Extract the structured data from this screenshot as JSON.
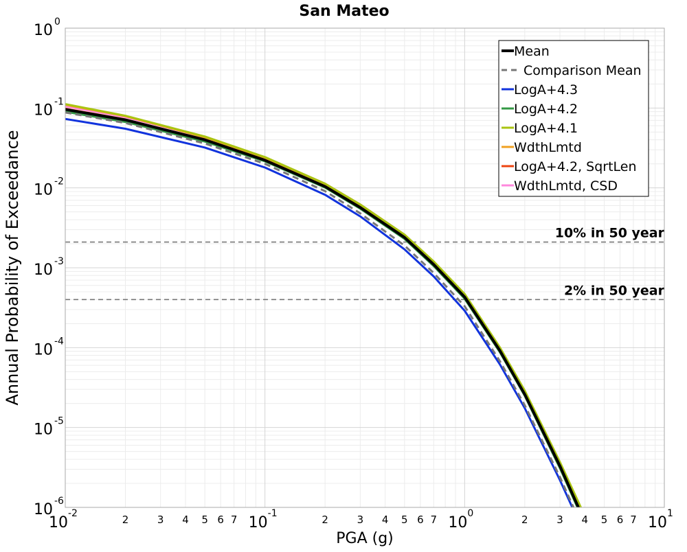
{
  "chart_data": {
    "type": "line",
    "title": "San Mateo",
    "xlabel": "PGA (g)",
    "ylabel": "Annual Probability of Exceedance",
    "xscale": "log",
    "yscale": "log",
    "xlim": [
      0.01,
      10
    ],
    "ylim": [
      1e-06,
      1
    ],
    "x_major_ticks": [
      {
        "value": 0.01,
        "base": "10",
        "exp": "-2"
      },
      {
        "value": 0.1,
        "base": "10",
        "exp": "-1"
      },
      {
        "value": 1,
        "base": "10",
        "exp": "0"
      },
      {
        "value": 10,
        "base": "10",
        "exp": "1"
      }
    ],
    "x_minor_tick_labels": [
      "2",
      "3",
      "4",
      "5",
      "6",
      "7"
    ],
    "y_major_ticks": [
      {
        "value": 1,
        "base": "10",
        "exp": "0"
      },
      {
        "value": 0.1,
        "base": "10",
        "exp": "-1"
      },
      {
        "value": 0.01,
        "base": "10",
        "exp": "-2"
      },
      {
        "value": 0.001,
        "base": "10",
        "exp": "-3"
      },
      {
        "value": 0.0001,
        "base": "10",
        "exp": "-4"
      },
      {
        "value": 1e-05,
        "base": "10",
        "exp": "-5"
      },
      {
        "value": 1e-06,
        "base": "10",
        "exp": "-6"
      }
    ],
    "grid": true,
    "legend_position": "top-right",
    "x": [
      0.01,
      0.02,
      0.05,
      0.1,
      0.2,
      0.3,
      0.5,
      0.7,
      1.0,
      1.5,
      2.0,
      3.0,
      4.0
    ],
    "series": [
      {
        "name": "WdthLmtd, CSD",
        "color": "#ff88dd",
        "dash": "solid",
        "values": [
          0.105,
          0.077,
          0.043,
          0.024,
          0.0113,
          0.0062,
          0.0026,
          0.00118,
          0.00046,
          9.8e-05,
          2.8e-05,
          3.5e-06,
          7.2e-07
        ]
      },
      {
        "name": "LogA+4.2, SqrtLen",
        "color": "#ee4411",
        "dash": "solid",
        "values": [
          0.098,
          0.072,
          0.04,
          0.0225,
          0.0105,
          0.0057,
          0.0024,
          0.0011,
          0.00043,
          9.2e-05,
          2.6e-05,
          3.2e-06,
          6.4e-07
        ]
      },
      {
        "name": "WdthLmtd",
        "color": "#f0a020",
        "dash": "solid",
        "values": [
          0.11,
          0.079,
          0.043,
          0.0238,
          0.011,
          0.006,
          0.0025,
          0.00115,
          0.00045,
          9.8e-05,
          2.8e-05,
          3.5e-06,
          7.2e-07
        ]
      },
      {
        "name": "LogA+4.2",
        "color": "#339944",
        "dash": "solid",
        "values": [
          0.09,
          0.067,
          0.038,
          0.0215,
          0.0101,
          0.0055,
          0.0023,
          0.00105,
          0.00041,
          8.8e-05,
          2.5e-05,
          3.1e-06,
          6.2e-07
        ]
      },
      {
        "name": "LogA+4.1",
        "color": "#aac411",
        "dash": "solid",
        "values": [
          0.112,
          0.08,
          0.044,
          0.0243,
          0.0113,
          0.0062,
          0.0026,
          0.0012,
          0.00047,
          0.000101,
          2.9e-05,
          3.7e-06,
          7.8e-07
        ]
      },
      {
        "name": "LogA+4.3",
        "color": "#1133dd",
        "dash": "solid",
        "values": [
          0.073,
          0.055,
          0.032,
          0.018,
          0.0082,
          0.0044,
          0.0017,
          0.00078,
          0.00029,
          6.2e-05,
          1.75e-05,
          2.2e-06,
          4.5e-07
        ]
      },
      {
        "name": "Comparison Mean",
        "color": "#777777",
        "dash": "dashed",
        "values": [
          0.088,
          0.065,
          0.036,
          0.02,
          0.0091,
          0.0048,
          0.0019,
          0.00086,
          0.00033,
          6.8e-05,
          1.9e-05,
          2.4e-06,
          4.8e-07
        ]
      },
      {
        "name": "Mean",
        "color": "#000000",
        "dash": "solid",
        "values": [
          0.096,
          0.071,
          0.04,
          0.0222,
          0.0104,
          0.0057,
          0.0024,
          0.0011,
          0.00043,
          9.2e-05,
          2.6e-05,
          3.3e-06,
          6.6e-07
        ]
      }
    ],
    "legend_order": [
      "Mean",
      "Comparison Mean",
      "LogA+4.3",
      "LogA+4.2",
      "LogA+4.1",
      "WdthLmtd",
      "LogA+4.2, SqrtLen",
      "WdthLmtd, CSD"
    ],
    "reference_lines": [
      {
        "label": "10% in 50 year",
        "y": 0.0021
      },
      {
        "label": "2% in 50 year",
        "y": 0.0004
      }
    ]
  }
}
